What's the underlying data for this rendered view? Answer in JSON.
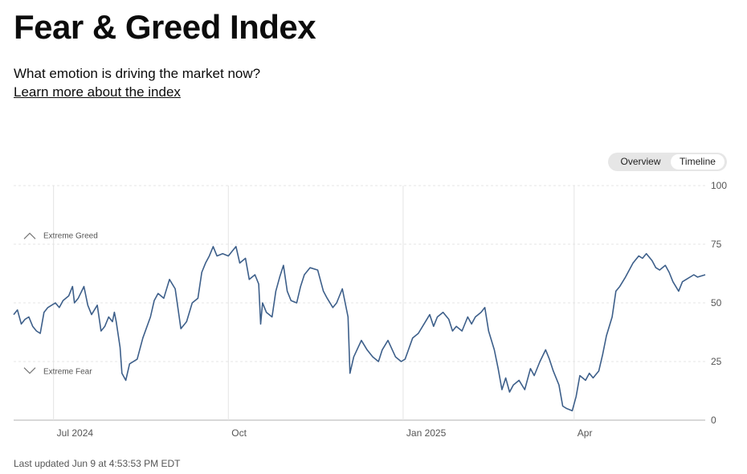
{
  "header": {
    "title": "Fear & Greed Index",
    "subtitle": "What emotion is driving the market now?",
    "learn_link": "Learn more about the index"
  },
  "view_toggle": {
    "options": [
      "Overview",
      "Timeline"
    ],
    "selected": "Timeline"
  },
  "footer": {
    "last_updated": "Last updated Jun 9 at 4:53:53 PM EDT"
  },
  "colors": {
    "line": "#3d5f8a",
    "grid": "#e4e4e4",
    "axis": "#cccccc",
    "text": "#555555"
  },
  "chart_data": {
    "type": "line",
    "title": "Fear & Greed Index",
    "xlabel": "",
    "ylabel": "",
    "ylim": [
      0,
      100
    ],
    "y_ticks": [
      0,
      25,
      50,
      75,
      100
    ],
    "x_range": [
      "2024-06-10",
      "2025-06-09"
    ],
    "x_ticks": [
      {
        "label": "Jul 2024",
        "date": "2024-07-01"
      },
      {
        "label": "Oct",
        "date": "2024-10-01"
      },
      {
        "label": "Jan 2025",
        "date": "2025-01-01"
      },
      {
        "label": "Apr",
        "date": "2025-04-01"
      }
    ],
    "annotations": [
      {
        "label": "Extreme Greed",
        "y": 79,
        "direction": "up"
      },
      {
        "label": "Extreme Fear",
        "y": 21,
        "direction": "down"
      }
    ],
    "series": [
      {
        "name": "Fear & Greed Index",
        "points": [
          [
            "2024-06-10",
            45
          ],
          [
            "2024-06-12",
            47
          ],
          [
            "2024-06-14",
            41
          ],
          [
            "2024-06-16",
            43
          ],
          [
            "2024-06-18",
            44
          ],
          [
            "2024-06-20",
            40
          ],
          [
            "2024-06-22",
            38
          ],
          [
            "2024-06-24",
            37
          ],
          [
            "2024-06-26",
            46
          ],
          [
            "2024-06-28",
            48
          ],
          [
            "2024-07-02",
            50
          ],
          [
            "2024-07-04",
            48
          ],
          [
            "2024-07-06",
            51
          ],
          [
            "2024-07-09",
            53
          ],
          [
            "2024-07-11",
            57
          ],
          [
            "2024-07-12",
            50
          ],
          [
            "2024-07-14",
            52
          ],
          [
            "2024-07-17",
            57
          ],
          [
            "2024-07-19",
            49
          ],
          [
            "2024-07-21",
            45
          ],
          [
            "2024-07-24",
            49
          ],
          [
            "2024-07-26",
            38
          ],
          [
            "2024-07-28",
            40
          ],
          [
            "2024-07-30",
            44
          ],
          [
            "2024-08-01",
            42
          ],
          [
            "2024-08-02",
            46
          ],
          [
            "2024-08-03",
            42
          ],
          [
            "2024-08-05",
            31
          ],
          [
            "2024-08-06",
            20
          ],
          [
            "2024-08-08",
            17
          ],
          [
            "2024-08-10",
            24
          ],
          [
            "2024-08-14",
            26
          ],
          [
            "2024-08-17",
            35
          ],
          [
            "2024-08-21",
            44
          ],
          [
            "2024-08-23",
            51
          ],
          [
            "2024-08-25",
            54
          ],
          [
            "2024-08-28",
            52
          ],
          [
            "2024-08-31",
            60
          ],
          [
            "2024-09-03",
            56
          ],
          [
            "2024-09-06",
            39
          ],
          [
            "2024-09-09",
            42
          ],
          [
            "2024-09-12",
            50
          ],
          [
            "2024-09-15",
            52
          ],
          [
            "2024-09-17",
            63
          ],
          [
            "2024-09-19",
            67
          ],
          [
            "2024-09-21",
            70
          ],
          [
            "2024-09-23",
            74
          ],
          [
            "2024-09-25",
            70
          ],
          [
            "2024-09-28",
            71
          ],
          [
            "2024-10-01",
            70
          ],
          [
            "2024-10-03",
            72
          ],
          [
            "2024-10-05",
            74
          ],
          [
            "2024-10-07",
            67
          ],
          [
            "2024-10-10",
            69
          ],
          [
            "2024-10-12",
            60
          ],
          [
            "2024-10-15",
            62
          ],
          [
            "2024-10-17",
            58
          ],
          [
            "2024-10-18",
            41
          ],
          [
            "2024-10-19",
            50
          ],
          [
            "2024-10-21",
            46
          ],
          [
            "2024-10-24",
            44
          ],
          [
            "2024-10-26",
            55
          ],
          [
            "2024-10-28",
            61
          ],
          [
            "2024-10-30",
            66
          ],
          [
            "2024-11-01",
            55
          ],
          [
            "2024-11-03",
            51
          ],
          [
            "2024-11-06",
            50
          ],
          [
            "2024-11-08",
            57
          ],
          [
            "2024-11-10",
            62
          ],
          [
            "2024-11-13",
            65
          ],
          [
            "2024-11-17",
            64
          ],
          [
            "2024-11-20",
            55
          ],
          [
            "2024-11-22",
            52
          ],
          [
            "2024-11-25",
            48
          ],
          [
            "2024-11-27",
            50
          ],
          [
            "2024-11-30",
            56
          ],
          [
            "2024-12-03",
            44
          ],
          [
            "2024-12-04",
            20
          ],
          [
            "2024-12-06",
            27
          ],
          [
            "2024-12-10",
            34
          ],
          [
            "2024-12-13",
            30
          ],
          [
            "2024-12-16",
            27
          ],
          [
            "2024-12-19",
            25
          ],
          [
            "2024-12-21",
            30
          ],
          [
            "2024-12-24",
            34
          ],
          [
            "2024-12-28",
            27
          ],
          [
            "2024-12-31",
            25
          ],
          [
            "2025-01-02",
            26
          ],
          [
            "2025-01-06",
            35
          ],
          [
            "2025-01-09",
            37
          ],
          [
            "2025-01-12",
            41
          ],
          [
            "2025-01-15",
            45
          ],
          [
            "2025-01-17",
            40
          ],
          [
            "2025-01-19",
            44
          ],
          [
            "2025-01-22",
            46
          ],
          [
            "2025-01-25",
            43
          ],
          [
            "2025-01-27",
            38
          ],
          [
            "2025-01-29",
            40
          ],
          [
            "2025-02-01",
            38
          ],
          [
            "2025-02-04",
            44
          ],
          [
            "2025-02-06",
            41
          ],
          [
            "2025-02-08",
            44
          ],
          [
            "2025-02-11",
            46
          ],
          [
            "2025-02-13",
            48
          ],
          [
            "2025-02-15",
            38
          ],
          [
            "2025-02-18",
            30
          ],
          [
            "2025-02-20",
            22
          ],
          [
            "2025-02-22",
            13
          ],
          [
            "2025-02-24",
            18
          ],
          [
            "2025-02-26",
            12
          ],
          [
            "2025-02-28",
            15
          ],
          [
            "2025-03-03",
            17
          ],
          [
            "2025-03-06",
            13
          ],
          [
            "2025-03-09",
            22
          ],
          [
            "2025-03-11",
            19
          ],
          [
            "2025-03-14",
            25
          ],
          [
            "2025-03-17",
            30
          ],
          [
            "2025-03-19",
            26
          ],
          [
            "2025-03-21",
            21
          ],
          [
            "2025-03-24",
            15
          ],
          [
            "2025-03-26",
            6
          ],
          [
            "2025-03-28",
            5
          ],
          [
            "2025-03-31",
            4
          ],
          [
            "2025-04-02",
            10
          ],
          [
            "2025-04-04",
            19
          ],
          [
            "2025-04-07",
            17
          ],
          [
            "2025-04-09",
            20
          ],
          [
            "2025-04-11",
            18
          ],
          [
            "2025-04-14",
            21
          ],
          [
            "2025-04-16",
            28
          ],
          [
            "2025-04-18",
            36
          ],
          [
            "2025-04-21",
            44
          ],
          [
            "2025-04-23",
            55
          ],
          [
            "2025-04-25",
            57
          ],
          [
            "2025-04-28",
            61
          ],
          [
            "2025-04-30",
            64
          ],
          [
            "2025-05-02",
            67
          ],
          [
            "2025-05-05",
            70
          ],
          [
            "2025-05-07",
            69
          ],
          [
            "2025-05-09",
            71
          ],
          [
            "2025-05-12",
            68
          ],
          [
            "2025-05-14",
            65
          ],
          [
            "2025-05-16",
            64
          ],
          [
            "2025-05-19",
            66
          ],
          [
            "2025-05-21",
            63
          ],
          [
            "2025-05-23",
            59
          ],
          [
            "2025-05-26",
            55
          ],
          [
            "2025-05-28",
            59
          ],
          [
            "2025-05-30",
            60
          ],
          [
            "2025-06-03",
            62
          ],
          [
            "2025-06-05",
            61
          ],
          [
            "2025-06-09",
            62
          ]
        ]
      }
    ]
  }
}
